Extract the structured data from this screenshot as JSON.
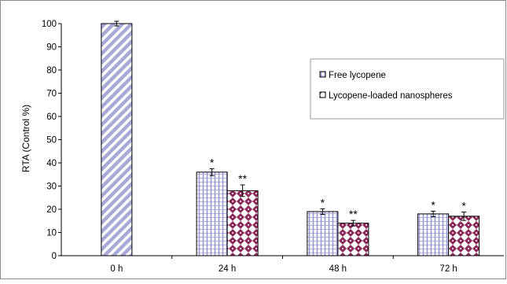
{
  "chart_data": {
    "type": "bar",
    "ylabel": "RTA (Control %)",
    "xlabel": "",
    "ylim": [
      0,
      100
    ],
    "yticks": [
      0,
      10,
      20,
      30,
      40,
      50,
      60,
      70,
      80,
      90,
      100
    ],
    "grid": false,
    "legend_position": "top-right",
    "categories": [
      "0 h",
      "24 h",
      "48 h",
      "72 h"
    ],
    "control": {
      "category": "0 h",
      "value": 100,
      "error": 1,
      "pattern": "diagonal-stripes",
      "color": "#a9a9d8"
    },
    "series": [
      {
        "name": "Free lycopene",
        "color": "#b4b4e0",
        "pattern": "brick",
        "values": [
          null,
          36,
          19,
          18
        ],
        "errors": [
          null,
          1.5,
          1.2,
          1.2
        ],
        "significance": [
          null,
          "*",
          "*",
          "*"
        ]
      },
      {
        "name": "Lycopene-loaded nanospheres",
        "color": "#8b2a5a",
        "pattern": "diamond",
        "values": [
          null,
          28,
          14,
          17
        ],
        "errors": [
          null,
          2.5,
          1.2,
          1.8
        ],
        "significance": [
          null,
          "**",
          "**",
          "*"
        ]
      }
    ]
  }
}
